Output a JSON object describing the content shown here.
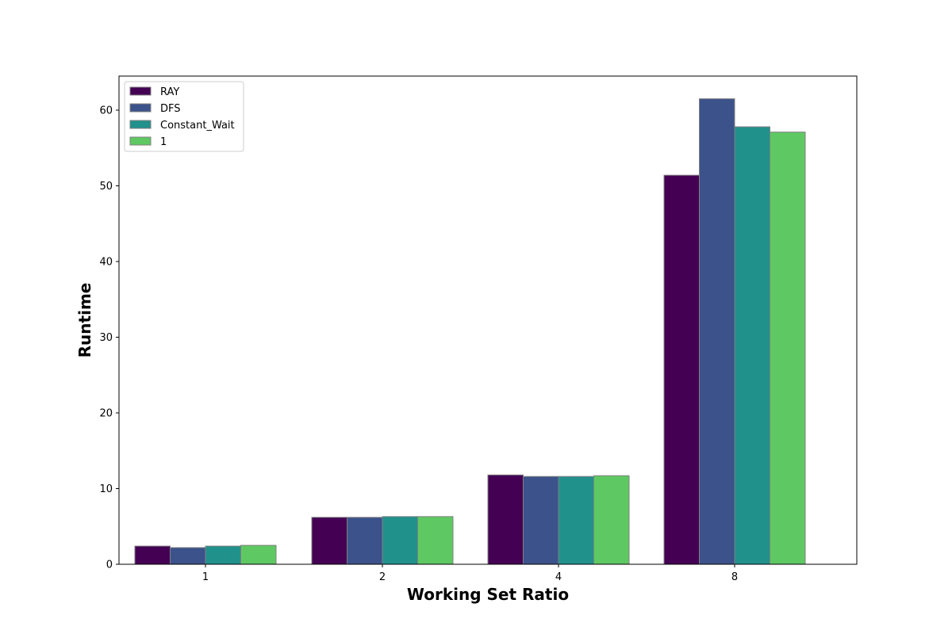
{
  "chart_data": {
    "type": "bar",
    "title": "",
    "xlabel": "Working Set Ratio",
    "ylabel": "Runtime",
    "categories": [
      "1",
      "2",
      "4",
      "8"
    ],
    "series": [
      {
        "name": "RAY",
        "color": "#440154",
        "values": [
          2.4,
          6.2,
          11.8,
          51.4
        ]
      },
      {
        "name": "DFS",
        "color": "#3b528b",
        "values": [
          2.2,
          6.2,
          11.6,
          61.5
        ]
      },
      {
        "name": "Constant_Wait",
        "color": "#21918c",
        "values": [
          2.4,
          6.3,
          11.6,
          57.8
        ]
      },
      {
        "name": "1",
        "color": "#5ec962",
        "values": [
          2.5,
          6.3,
          11.7,
          57.1
        ]
      }
    ],
    "ylim": [
      0,
      64.5
    ],
    "yticks": [
      0,
      10,
      20,
      30,
      40,
      50,
      60
    ],
    "grid": false,
    "legend_position": "top-left"
  }
}
